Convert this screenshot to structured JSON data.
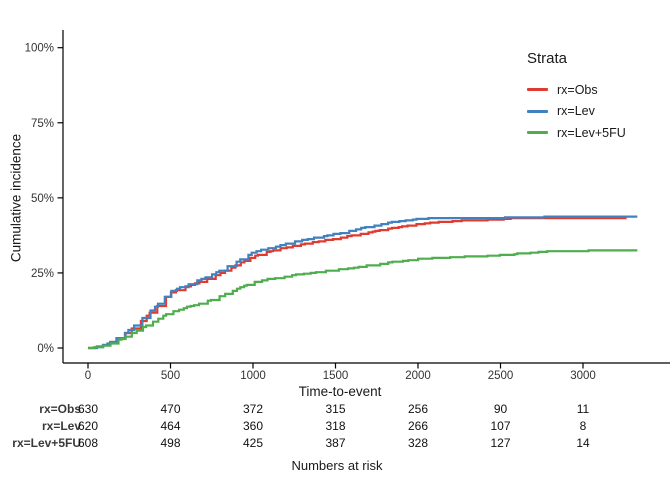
{
  "figure": {
    "background": "#ffffff",
    "axis_color": "#000000",
    "tick_text_color": "#333333"
  },
  "chart_data": {
    "type": "line",
    "subtype": "step-function-cumulative-incidence",
    "title": "",
    "xlabel": "Time-to-event",
    "ylabel": "Cumulative incidence",
    "x_ticks": [
      0,
      500,
      1000,
      1500,
      2000,
      2500,
      3000
    ],
    "y_tick_values": [
      0,
      25,
      50,
      75,
      100
    ],
    "y_tick_labels": [
      "0%",
      "25%",
      "50%",
      "75%",
      "100%"
    ],
    "xlim": [
      0,
      3530
    ],
    "ylim": [
      0,
      100
    ],
    "grid": false,
    "legend": {
      "title": "Strata",
      "position": "right-top",
      "items": [
        {
          "label": "rx=Obs",
          "color": "#E03B31"
        },
        {
          "label": "rx=Lev",
          "color": "#4181BF"
        },
        {
          "label": "rx=Lev+5FU",
          "color": "#4EAE4D"
        }
      ]
    },
    "series": [
      {
        "name": "rx=Obs",
        "color": "#E03B31",
        "units": "t_days, pct",
        "points": [
          [
            0,
            0
          ],
          [
            60,
            0.5
          ],
          [
            120,
            1.6
          ],
          [
            200,
            4
          ],
          [
            300,
            8
          ],
          [
            400,
            13
          ],
          [
            500,
            18.5
          ],
          [
            620,
            21
          ],
          [
            750,
            23.5
          ],
          [
            875,
            27
          ],
          [
            1000,
            30.5
          ],
          [
            1150,
            33
          ],
          [
            1300,
            34.5
          ],
          [
            1500,
            36.5
          ],
          [
            1700,
            38.5
          ],
          [
            1850,
            40
          ],
          [
            2000,
            41.3
          ],
          [
            2150,
            42
          ],
          [
            2300,
            42.5
          ],
          [
            2450,
            42.7
          ],
          [
            2600,
            43.3
          ],
          [
            3264,
            43.3
          ]
        ]
      },
      {
        "name": "rx=Lev",
        "color": "#4181BF",
        "units": "t_days, pct",
        "points": [
          [
            0,
            0
          ],
          [
            60,
            0.4
          ],
          [
            120,
            1.5
          ],
          [
            200,
            4
          ],
          [
            300,
            8.5
          ],
          [
            400,
            13.5
          ],
          [
            500,
            19
          ],
          [
            620,
            21.5
          ],
          [
            750,
            24.5
          ],
          [
            875,
            28
          ],
          [
            1000,
            32
          ],
          [
            1150,
            34
          ],
          [
            1300,
            36
          ],
          [
            1500,
            38
          ],
          [
            1700,
            40.5
          ],
          [
            1850,
            42
          ],
          [
            2000,
            43
          ],
          [
            2150,
            43.3
          ],
          [
            2650,
            43.4
          ],
          [
            2750,
            43.7
          ],
          [
            3329,
            43.7
          ]
        ]
      },
      {
        "name": "rx=Lev+5FU",
        "color": "#4EAE4D",
        "units": "t_days, pct",
        "points": [
          [
            0,
            0
          ],
          [
            60,
            0.3
          ],
          [
            120,
            1.2
          ],
          [
            200,
            3
          ],
          [
            300,
            6
          ],
          [
            400,
            9
          ],
          [
            500,
            12
          ],
          [
            620,
            14
          ],
          [
            750,
            16
          ],
          [
            875,
            19
          ],
          [
            1000,
            22
          ],
          [
            1150,
            23.5
          ],
          [
            1300,
            24.8
          ],
          [
            1500,
            26
          ],
          [
            1700,
            27.5
          ],
          [
            1850,
            28.7
          ],
          [
            2000,
            29.7
          ],
          [
            2250,
            30.3
          ],
          [
            2520,
            31
          ],
          [
            2800,
            32.3
          ],
          [
            3329,
            32.5
          ]
        ]
      }
    ]
  },
  "risk_table": {
    "caption": "Numbers at risk",
    "times": [
      0,
      500,
      1000,
      1500,
      2000,
      2500,
      3000
    ],
    "rows": [
      {
        "label": "rx=Obs",
        "counts": [
          630,
          470,
          372,
          315,
          256,
          90,
          11
        ]
      },
      {
        "label": "rx=Lev",
        "counts": [
          620,
          464,
          360,
          318,
          266,
          107,
          8
        ]
      },
      {
        "label": "rx=Lev+5FU",
        "counts": [
          608,
          498,
          425,
          387,
          328,
          127,
          14
        ]
      }
    ]
  }
}
